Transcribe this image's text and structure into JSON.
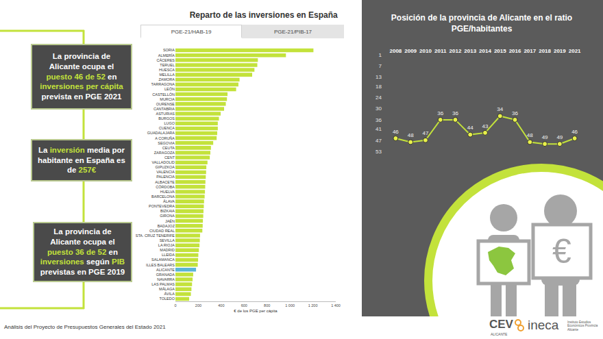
{
  "chart_data": [
    {
      "type": "bar",
      "title": "Reparto de las inversiones en España",
      "orientation": "horizontal",
      "categories": [
        "SORIA",
        "ALMERÍA",
        "CÁCERES",
        "TERUEL",
        "HUESCA",
        "MELILLA",
        "ZAMORA",
        "TARRAGONA",
        "LEÓN",
        "CASTELLÓN",
        "MURCIA",
        "OURENSE",
        "CANTABRIA",
        "ASTURIAS",
        "BURGOS",
        "LUGO",
        "CUENCA",
        "GUADALAJARA",
        "A CORUÑA",
        "SEGOVIA",
        "CEUTA",
        "ZARAGOZA",
        "CENT",
        "VALLADOLID",
        "GIPUZKOA",
        "VALENCIA",
        "PALENCIA",
        "ALBACETE",
        "CÓRDOBA",
        "HUELVA",
        "BARCELONA",
        "ÁLAVA",
        "PONTEVEDRA",
        "BIZKAIA",
        "GIRONA",
        "JAÉN",
        "BADAJOZ",
        "CIUDAD REAL",
        "STA. CRUZ TENERIFE",
        "SEVILLA",
        "LA RIOJA",
        "MADRID",
        "LLEIDA",
        "SALAMANCA",
        "ILLES BALEARS",
        "ALICANTE",
        "GRANADA",
        "NAVARRA",
        "LAS PALMAS",
        "MÁLAGA",
        "ÁVILA",
        "TOLEDO"
      ],
      "values": [
        1205,
        965,
        720,
        715,
        690,
        670,
        560,
        550,
        530,
        455,
        450,
        440,
        425,
        395,
        380,
        370,
        370,
        365,
        360,
        330,
        310,
        305,
        300,
        280,
        270,
        268,
        265,
        262,
        260,
        258,
        255,
        250,
        248,
        245,
        243,
        240,
        238,
        235,
        215,
        213,
        210,
        205,
        200,
        198,
        195,
        180,
        155,
        150,
        145,
        140,
        135,
        120
      ],
      "colors": [
        "#c3e23b",
        "#c3e23b",
        "#c3e23b",
        "#c3e23b",
        "#c3e23b",
        "#c3e23b",
        "#c3e23b",
        "#c3e23b",
        "#c3e23b",
        "#c3e23b",
        "#c3e23b",
        "#c3e23b",
        "#c3e23b",
        "#c3e23b",
        "#c3e23b",
        "#c3e23b",
        "#c3e23b",
        "#c3e23b",
        "#c3e23b",
        "#c3e23b",
        "#c3e23b",
        "#c3e23b",
        "#c3e23b",
        "#c3e23b",
        "#c3e23b",
        "#c3e23b",
        "#c3e23b",
        "#c3e23b",
        "#c3e23b",
        "#c3e23b",
        "#c3e23b",
        "#c3e23b",
        "#c3e23b",
        "#c3e23b",
        "#c3e23b",
        "#c3e23b",
        "#c3e23b",
        "#c3e23b",
        "#c3e23b",
        "#c3e23b",
        "#c3e23b",
        "#c3e23b",
        "#c3e23b",
        "#c3e23b",
        "#c3e23b",
        "#5ab4d6",
        "#c3e23b",
        "#c3e23b",
        "#c3e23b",
        "#c3e23b",
        "#c3e23b",
        "#c3e23b"
      ],
      "xlabel": "€ de los PGE per cápita",
      "xlim": [
        0,
        1400
      ],
      "xticks": [
        0,
        200,
        400,
        600,
        800,
        {
          "value": 1000,
          "label": "1 000"
        },
        {
          "value": 1200,
          "label": "1 200"
        },
        {
          "value": 1400,
          "label": "1 400"
        }
      ],
      "grid": false
    },
    {
      "type": "line",
      "title": "Posición de la provincia de Alicante en el ratio PGE/habitantes",
      "categories": [
        "2008",
        "2009",
        "2010",
        "2011",
        "2012",
        "2013",
        "2014",
        "2015",
        "2016",
        "2017",
        "2018",
        "2019",
        "2021"
      ],
      "values": [
        46,
        48,
        47,
        36,
        36,
        44,
        43,
        34,
        36,
        48,
        49,
        49,
        46
      ],
      "color": "#c3e23b",
      "marker": "circle",
      "data_labels": true,
      "ylim": [
        53,
        1
      ],
      "yticks": [
        1,
        7,
        13,
        18,
        24,
        30,
        36,
        41,
        47,
        53
      ],
      "grid": false
    }
  ],
  "tabs": [
    "PGE-21/HAB-19",
    "PGE-21/PIB-17"
  ],
  "boxes": [
    [
      {
        "text": "La provincia de Alicante ocupa el ",
        "color": "#ffffff"
      },
      {
        "text": "puesto 46 de 52",
        "color": "#c3e23b"
      },
      {
        "text": " en ",
        "color": "#ffffff"
      },
      {
        "text": "inversiones per cápita",
        "color": "#c3e23b"
      },
      {
        "text": " prevista en PGE 2021",
        "color": "#ffffff"
      }
    ],
    [
      {
        "text": "La ",
        "color": "#ffffff"
      },
      {
        "text": "inversión",
        "color": "#c3e23b"
      },
      {
        "text": " media por habitante en España es de ",
        "color": "#ffffff"
      },
      {
        "text": "257€",
        "color": "#c3e23b"
      }
    ],
    [
      {
        "text": "La provincia de Alicante ocupa el ",
        "color": "#ffffff"
      },
      {
        "text": "puesto 36 de 52",
        "color": "#c3e23b"
      },
      {
        "text": " en ",
        "color": "#ffffff"
      },
      {
        "text": "inversiones",
        "color": "#c3e23b"
      },
      {
        "text": " según ",
        "color": "#ffffff"
      },
      {
        "text": "PIB",
        "color": "#c3e23b"
      },
      {
        "text": " previstas en PGE 2019",
        "color": "#ffffff"
      }
    ]
  ],
  "footer": "Análisis del Proyecto de Presupuestos Generales del Estado 2021",
  "logos": {
    "cev": "CEV",
    "cev_sub": "ALICANTE",
    "ineca": "ineca",
    "ineca_sub": "Instituto Estudios Económicos Provincia Alicante"
  },
  "icon_symbol": "€"
}
